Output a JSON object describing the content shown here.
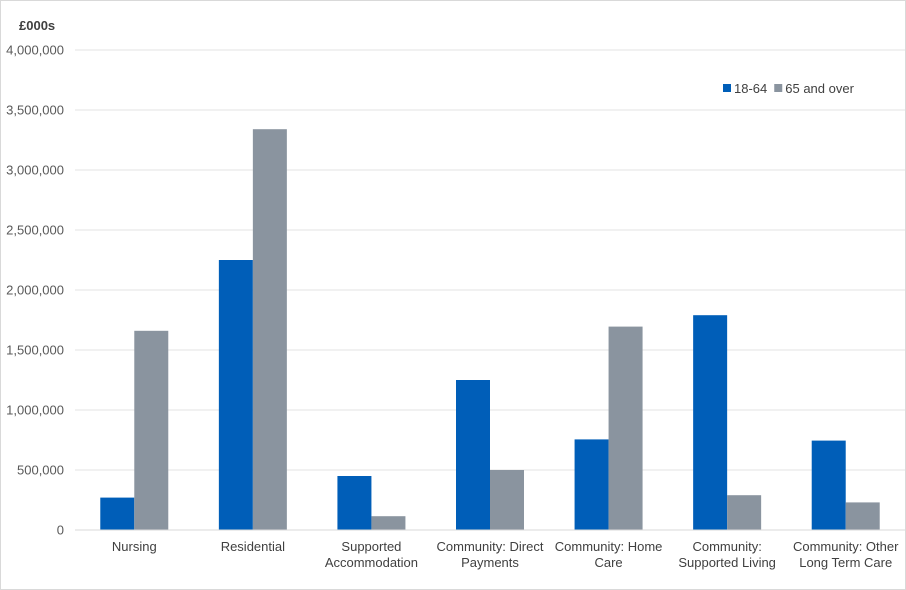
{
  "chart_data": {
    "type": "bar",
    "title": "",
    "unit_label": "£000s",
    "xlabel": "",
    "ylabel": "",
    "ylim": [
      0,
      4000000
    ],
    "yticks": [
      0,
      500000,
      1000000,
      1500000,
      2000000,
      2500000,
      3000000,
      3500000,
      4000000
    ],
    "ytick_labels": [
      "0",
      "500,000",
      "1,000,000",
      "1,500,000",
      "2,000,000",
      "2,500,000",
      "3,000,000",
      "3,500,000",
      "4,000,000"
    ],
    "grid": true,
    "legend_position": "top-right",
    "categories": [
      [
        "Nursing"
      ],
      [
        "Residential"
      ],
      [
        "Supported",
        "Accommodation"
      ],
      [
        "Community: Direct",
        "Payments"
      ],
      [
        "Community: Home",
        "Care"
      ],
      [
        "Community:",
        "Supported Living"
      ],
      [
        "Community: Other",
        "Long Term Care"
      ]
    ],
    "series": [
      {
        "name": "18-64",
        "color": "#005EB8",
        "values": [
          270000,
          2250000,
          450000,
          1250000,
          755000,
          1790000,
          745000
        ]
      },
      {
        "name": "65 and over",
        "color": "#8A949F",
        "values": [
          1660000,
          3340000,
          115000,
          500000,
          1695000,
          290000,
          230000
        ]
      }
    ]
  }
}
